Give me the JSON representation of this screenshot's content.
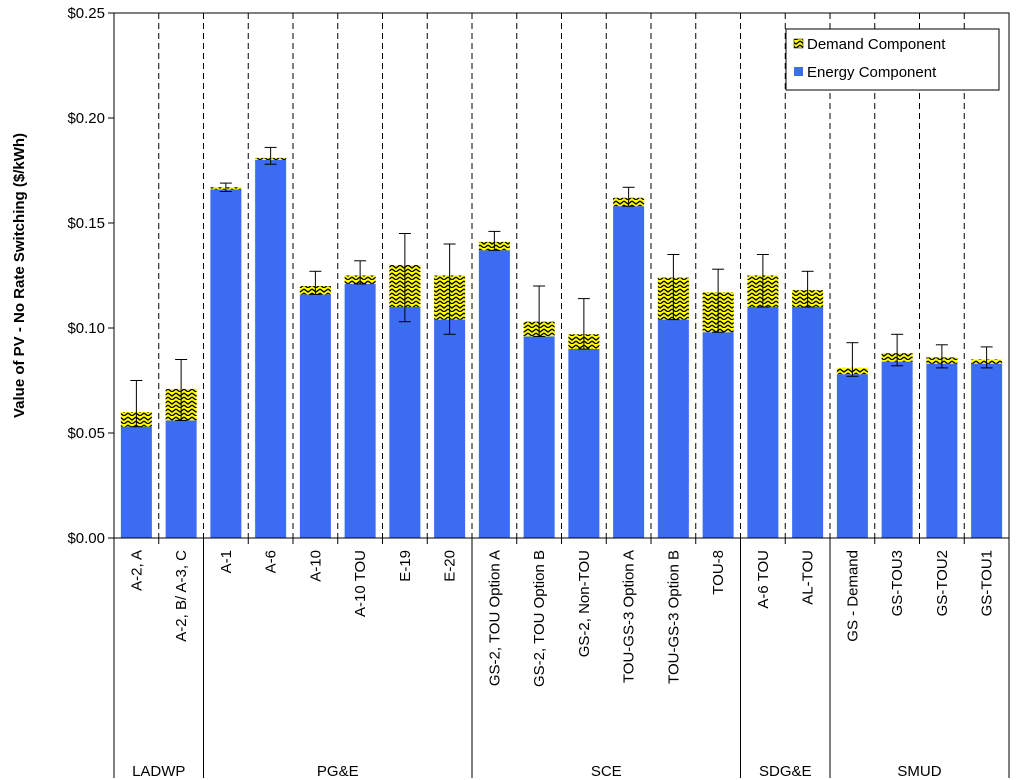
{
  "chart_data": {
    "type": "bar",
    "stacked": true,
    "title": "",
    "xlabel": "",
    "ylabel": "Value of PV - No Rate Switching ($/kWh)",
    "ylim": [
      0,
      0.25
    ],
    "y_ticks": [
      "$0.00",
      "$0.05",
      "$0.10",
      "$0.15",
      "$0.20",
      "$0.25"
    ],
    "y_tick_values": [
      0,
      0.05,
      0.1,
      0.15,
      0.2,
      0.25
    ],
    "legend_position": "top-right",
    "categories": [
      "A-2, A",
      "A-2, B/ A-3, C",
      "A-1",
      "A-6",
      "A-10",
      "A-10 TOU",
      "E-19",
      "E-20",
      "GS-2, TOU Option A",
      "GS-2, TOU Option B",
      "GS-2, Non-TOU",
      "TOU-GS-3 Option A",
      "TOU-GS-3 Option B",
      "TOU-8",
      "A-6 TOU",
      "AL-TOU",
      "GS - Demand",
      "GS-TOU3",
      "GS-TOU2",
      "GS-TOU1"
    ],
    "groups": [
      {
        "name": "LADWP",
        "count": 2
      },
      {
        "name": "PG&E",
        "count": 6
      },
      {
        "name": "SCE",
        "count": 6
      },
      {
        "name": "SDG&E",
        "count": 2
      },
      {
        "name": "SMUD",
        "count": 4
      }
    ],
    "series": [
      {
        "name": "Energy Component",
        "color": "#3b6cf2",
        "values": [
          0.053,
          0.056,
          0.166,
          0.18,
          0.116,
          0.121,
          0.11,
          0.104,
          0.137,
          0.096,
          0.09,
          0.158,
          0.104,
          0.098,
          0.11,
          0.11,
          0.078,
          0.084,
          0.083,
          0.083
        ]
      },
      {
        "name": "Demand Component",
        "color": "#ffff00",
        "pattern": "chevron",
        "values": [
          0.007,
          0.015,
          0.001,
          0.001,
          0.004,
          0.004,
          0.02,
          0.021,
          0.004,
          0.007,
          0.007,
          0.004,
          0.02,
          0.019,
          0.015,
          0.008,
          0.003,
          0.004,
          0.003,
          0.002
        ]
      }
    ],
    "error_bars": [
      {
        "low": 0.053,
        "high": 0.075
      },
      {
        "low": 0.056,
        "high": 0.085
      },
      {
        "low": 0.165,
        "high": 0.169
      },
      {
        "low": 0.178,
        "high": 0.186
      },
      {
        "low": 0.116,
        "high": 0.127
      },
      {
        "low": 0.121,
        "high": 0.132
      },
      {
        "low": 0.103,
        "high": 0.145
      },
      {
        "low": 0.097,
        "high": 0.14
      },
      {
        "low": 0.137,
        "high": 0.146
      },
      {
        "low": 0.096,
        "high": 0.12
      },
      {
        "low": 0.09,
        "high": 0.114
      },
      {
        "low": 0.158,
        "high": 0.167
      },
      {
        "low": 0.104,
        "high": 0.135
      },
      {
        "low": 0.098,
        "high": 0.128
      },
      {
        "low": 0.11,
        "high": 0.135
      },
      {
        "low": 0.11,
        "high": 0.127
      },
      {
        "low": 0.077,
        "high": 0.093
      },
      {
        "low": 0.082,
        "high": 0.097
      },
      {
        "low": 0.081,
        "high": 0.092
      },
      {
        "low": 0.081,
        "high": 0.091
      }
    ]
  }
}
